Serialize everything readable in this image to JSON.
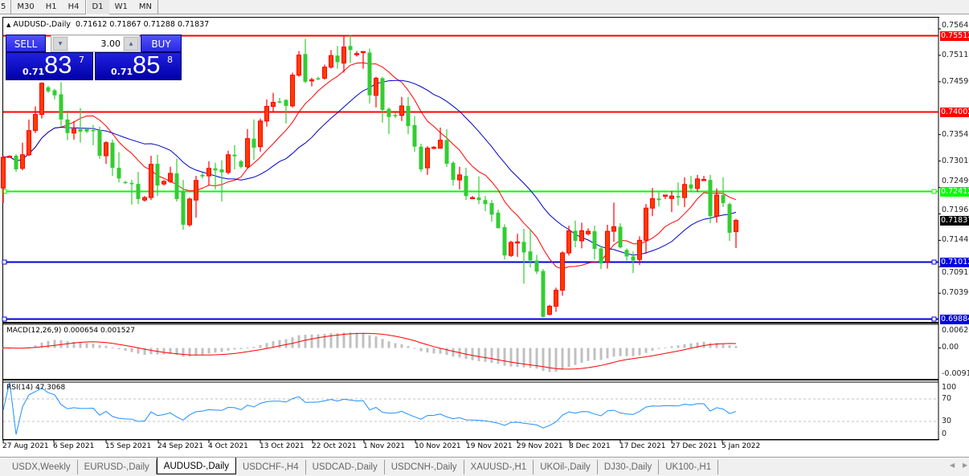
{
  "toolbar": {
    "timeframes": [
      "5",
      "M30",
      "H1",
      "H4",
      "D1",
      "W1",
      "MN"
    ],
    "active": "D1"
  },
  "chart": {
    "title": "AUDUSD-,Daily",
    "ohlc": "0.71612 0.71867 0.71288 0.71837",
    "trade": {
      "sell_label": "SELL",
      "buy_label": "BUY",
      "lot": "3.00",
      "sell": {
        "prefix": "0.71",
        "big": "83",
        "sup": "7"
      },
      "buy": {
        "prefix": "0.71",
        "big": "85",
        "sup": "8"
      }
    },
    "colors": {
      "bull": "#ff0000",
      "bear": "#32cd32",
      "ma_fast": "#ff0000",
      "ma_slow": "#0000c8"
    },
    "price_axis": [
      {
        "label": "0.75640",
        "value": 0.7564
      },
      {
        "label": "0.75115",
        "value": 0.75115
      },
      {
        "label": "0.74590",
        "value": 0.7459
      },
      {
        "label": "0.73540",
        "value": 0.7354
      },
      {
        "label": "0.73015",
        "value": 0.73015
      },
      {
        "label": "0.72490",
        "value": 0.7249
      },
      {
        "label": "0.71965",
        "value": 0.71965
      },
      {
        "label": "0.71440",
        "value": 0.7144
      },
      {
        "label": "0.70915",
        "value": 0.70915
      },
      {
        "label": "0.70390",
        "value": 0.7039
      }
    ],
    "levels": [
      {
        "label": "0.75512",
        "value": 0.75512,
        "color": "#ff0000"
      },
      {
        "label": "0.74002",
        "value": 0.74002,
        "color": "#ff0000"
      },
      {
        "label": "0.72412",
        "value": 0.72412,
        "color": "#00ff00"
      },
      {
        "label": "0.71012",
        "value": 0.71012,
        "color": "#0000e0"
      },
      {
        "label": "0.69884",
        "value": 0.69884,
        "color": "#0000e0"
      }
    ],
    "current_price": {
      "label": "0.71837",
      "value": 0.71837
    },
    "candles": [
      [
        0.7248,
        0.7312,
        0.7218,
        0.7309
      ],
      [
        0.731,
        0.7313,
        0.7308,
        0.7311
      ],
      [
        0.7312,
        0.7315,
        0.728,
        0.7285
      ],
      [
        0.7287,
        0.7338,
        0.7283,
        0.7314
      ],
      [
        0.7314,
        0.7384,
        0.7311,
        0.7362
      ],
      [
        0.7362,
        0.741,
        0.7357,
        0.7394
      ],
      [
        0.7394,
        0.7458,
        0.7386,
        0.7456
      ],
      [
        0.7448,
        0.7451,
        0.7437,
        0.744
      ],
      [
        0.7442,
        0.7445,
        0.7424,
        0.7432
      ],
      [
        0.7434,
        0.7458,
        0.737,
        0.7384
      ],
      [
        0.7384,
        0.7402,
        0.7343,
        0.7357
      ],
      [
        0.7357,
        0.7381,
        0.7344,
        0.7365
      ],
      [
        0.7365,
        0.7407,
        0.7338,
        0.736
      ],
      [
        0.7365,
        0.7368,
        0.7357,
        0.736
      ],
      [
        0.7363,
        0.7373,
        0.7333,
        0.7362
      ],
      [
        0.7363,
        0.737,
        0.7306,
        0.7312
      ],
      [
        0.7312,
        0.7341,
        0.7296,
        0.7338
      ],
      [
        0.7338,
        0.7344,
        0.7272,
        0.7288
      ],
      [
        0.7288,
        0.7319,
        0.7259,
        0.7267
      ],
      [
        0.726,
        0.7262,
        0.7256,
        0.7259
      ],
      [
        0.7258,
        0.7264,
        0.7215,
        0.7256
      ],
      [
        0.7256,
        0.728,
        0.7216,
        0.7226
      ],
      [
        0.7224,
        0.7232,
        0.7221,
        0.7229
      ],
      [
        0.7229,
        0.7312,
        0.7224,
        0.7295
      ],
      [
        0.7296,
        0.7314,
        0.7232,
        0.7253
      ],
      [
        0.7256,
        0.7264,
        0.7253,
        0.7261
      ],
      [
        0.7261,
        0.729,
        0.7258,
        0.7277
      ],
      [
        0.7277,
        0.7306,
        0.7221,
        0.7226
      ],
      [
        0.7242,
        0.7264,
        0.7165,
        0.7175
      ],
      [
        0.7175,
        0.7229,
        0.7171,
        0.7226
      ],
      [
        0.7224,
        0.7272,
        0.7189,
        0.7263
      ],
      [
        0.7274,
        0.7279,
        0.7267,
        0.7271
      ],
      [
        0.7272,
        0.7301,
        0.7253,
        0.7287
      ],
      [
        0.7287,
        0.7298,
        0.7245,
        0.7283
      ],
      [
        0.7285,
        0.7303,
        0.7221,
        0.7279
      ],
      [
        0.7279,
        0.7322,
        0.7275,
        0.7314
      ],
      [
        0.7314,
        0.7333,
        0.7285,
        0.7311
      ],
      [
        0.7301,
        0.7304,
        0.7287,
        0.729
      ],
      [
        0.729,
        0.7365,
        0.7287,
        0.7346
      ],
      [
        0.7346,
        0.7384,
        0.7304,
        0.7328
      ],
      [
        0.733,
        0.7386,
        0.732,
        0.7381
      ],
      [
        0.7381,
        0.7424,
        0.737,
        0.741
      ],
      [
        0.741,
        0.7437,
        0.74,
        0.7418
      ],
      [
        0.742,
        0.7427,
        0.7416,
        0.7419
      ],
      [
        0.7423,
        0.7424,
        0.7376,
        0.7411
      ],
      [
        0.7411,
        0.7477,
        0.7408,
        0.7472
      ],
      [
        0.7472,
        0.752,
        0.7469,
        0.7512
      ],
      [
        0.7514,
        0.7544,
        0.7456,
        0.7459
      ],
      [
        0.7462,
        0.7467,
        0.745,
        0.7463
      ],
      [
        0.7466,
        0.7469,
        0.7462,
        0.7465
      ],
      [
        0.7466,
        0.7493,
        0.7463,
        0.7488
      ],
      [
        0.7488,
        0.7522,
        0.7485,
        0.7511
      ],
      [
        0.7511,
        0.753,
        0.7485,
        0.7498
      ],
      [
        0.7496,
        0.7552,
        0.7477,
        0.7528
      ],
      [
        0.753,
        0.7552,
        0.7496,
        0.7522
      ],
      [
        0.7514,
        0.752,
        0.7509,
        0.7515
      ],
      [
        0.7518,
        0.752,
        0.7485,
        0.7519
      ],
      [
        0.7517,
        0.7525,
        0.7416,
        0.7432
      ],
      [
        0.7432,
        0.7469,
        0.7408,
        0.7466
      ],
      [
        0.7466,
        0.7469,
        0.7378,
        0.7403
      ],
      [
        0.7405,
        0.7408,
        0.7355,
        0.7389
      ],
      [
        0.7393,
        0.7397,
        0.7387,
        0.7392
      ],
      [
        0.7392,
        0.7429,
        0.7381,
        0.7411
      ],
      [
        0.7411,
        0.7429,
        0.7355,
        0.7371
      ],
      [
        0.7373,
        0.7391,
        0.732,
        0.733
      ],
      [
        0.733,
        0.7336,
        0.728,
        0.7285
      ],
      [
        0.7288,
        0.7331,
        0.7274,
        0.7327
      ],
      [
        0.7328,
        0.7331,
        0.7325,
        0.7329
      ],
      [
        0.7327,
        0.7368,
        0.7327,
        0.7343
      ],
      [
        0.7343,
        0.7365,
        0.729,
        0.7296
      ],
      [
        0.7298,
        0.7301,
        0.7253,
        0.7264
      ],
      [
        0.7264,
        0.729,
        0.7245,
        0.7274
      ],
      [
        0.7272,
        0.7288,
        0.7224,
        0.7232
      ],
      [
        0.7228,
        0.7232,
        0.7226,
        0.7229
      ],
      [
        0.7229,
        0.7271,
        0.7216,
        0.7224
      ],
      [
        0.7224,
        0.7232,
        0.7202,
        0.7216
      ],
      [
        0.7218,
        0.7224,
        0.7181,
        0.7195
      ],
      [
        0.7199,
        0.7205,
        0.7168,
        0.7168
      ],
      [
        0.717,
        0.7176,
        0.7106,
        0.7114
      ],
      [
        0.7114,
        0.7143,
        0.7111,
        0.714
      ],
      [
        0.7141,
        0.7157,
        0.7111,
        0.7141
      ],
      [
        0.7141,
        0.7167,
        0.7058,
        0.712
      ],
      [
        0.7122,
        0.7167,
        0.709,
        0.7104
      ],
      [
        0.7104,
        0.7115,
        0.7077,
        0.7082
      ],
      [
        0.7083,
        0.7087,
        0.6991,
        0.6992
      ],
      [
        0.6997,
        0.7016,
        0.6995,
        0.7013
      ],
      [
        0.7013,
        0.705,
        0.7002,
        0.7045
      ],
      [
        0.7045,
        0.7122,
        0.7034,
        0.7119
      ],
      [
        0.7119,
        0.7173,
        0.7114,
        0.7163
      ],
      [
        0.7163,
        0.7183,
        0.713,
        0.7143
      ],
      [
        0.7143,
        0.7179,
        0.7128,
        0.7163
      ],
      [
        0.7157,
        0.7168,
        0.7154,
        0.7162
      ],
      [
        0.7162,
        0.7173,
        0.7106,
        0.7127
      ],
      [
        0.7128,
        0.7133,
        0.7087,
        0.7098
      ],
      [
        0.7101,
        0.7175,
        0.7088,
        0.7162
      ],
      [
        0.7162,
        0.7219,
        0.7141,
        0.7171
      ],
      [
        0.7171,
        0.7178,
        0.7128,
        0.713
      ],
      [
        0.7125,
        0.7128,
        0.7104,
        0.7112
      ],
      [
        0.7112,
        0.7122,
        0.7079,
        0.7104
      ],
      [
        0.7106,
        0.7152,
        0.7095,
        0.7144
      ],
      [
        0.7144,
        0.7216,
        0.7117,
        0.7208
      ],
      [
        0.7208,
        0.7248,
        0.7192,
        0.7227
      ],
      [
        0.7227,
        0.7242,
        0.7211,
        0.7224
      ],
      [
        0.7234,
        0.7234,
        0.7226,
        0.7234
      ],
      [
        0.7227,
        0.7242,
        0.72,
        0.7232
      ],
      [
        0.7232,
        0.7259,
        0.7213,
        0.7229
      ],
      [
        0.7229,
        0.7269,
        0.721,
        0.7255
      ],
      [
        0.7255,
        0.7272,
        0.724,
        0.7247
      ],
      [
        0.7247,
        0.7274,
        0.724,
        0.7266
      ],
      [
        0.7264,
        0.7272,
        0.7263,
        0.7265
      ],
      [
        0.7264,
        0.7274,
        0.7178,
        0.7192
      ],
      [
        0.7192,
        0.7247,
        0.7179,
        0.7234
      ],
      [
        0.7234,
        0.7269,
        0.721,
        0.7218
      ],
      [
        0.7216,
        0.7219,
        0.7143,
        0.7159
      ],
      [
        0.71612,
        0.71867,
        0.71288,
        0.71837
      ]
    ]
  },
  "macd": {
    "label": "MACD(12,26,9) 0.000654 0.001527",
    "axis": [
      "0.006201",
      "0.00",
      "-0.00919"
    ]
  },
  "rsi": {
    "label": "RSI(14) 47.3068",
    "axis": [
      "100",
      "70",
      "30",
      "0"
    ],
    "color": "#1e90ff"
  },
  "dates": [
    "27 Aug 2021",
    "6 Sep 2021",
    "15 Sep 2021",
    "24 Sep 2021",
    "4 Oct 2021",
    "13 Oct 2021",
    "22 Oct 2021",
    "1 Nov 2021",
    "10 Nov 2021",
    "19 Nov 2021",
    "29 Nov 2021",
    "8 Dec 2021",
    "17 Dec 2021",
    "27 Dec 2021",
    "5 Jan 2022"
  ],
  "tabs": [
    {
      "label": "USDX,Weekly"
    },
    {
      "label": "EURUSD-,Daily"
    },
    {
      "label": "AUDUSD-,Daily",
      "active": true
    },
    {
      "label": "USDCHF-,H4"
    },
    {
      "label": "USDCAD-,Daily"
    },
    {
      "label": "USDCNH-,Daily"
    },
    {
      "label": "XAUUSD-,H1"
    },
    {
      "label": "UKOil-,Daily"
    },
    {
      "label": "DJ30-,Daily"
    },
    {
      "label": "UK100-,H1"
    }
  ]
}
